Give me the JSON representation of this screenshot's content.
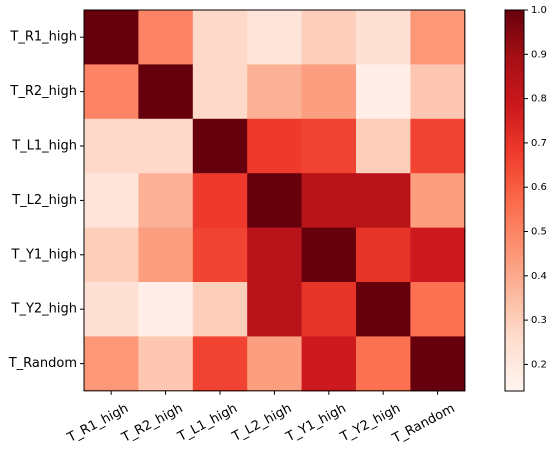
{
  "chart_data": {
    "type": "heatmap",
    "title": "",
    "xlabel": "",
    "ylabel": "",
    "row_labels": [
      "T_R1_high",
      "T_R2_high",
      "T_L1_high",
      "T_L2_high",
      "T_Y1_high",
      "T_Y2_high",
      "T_Random"
    ],
    "col_labels": [
      "T_R1_high",
      "T_R2_high",
      "T_L1_high",
      "T_L2_high",
      "T_Y1_high",
      "T_Y2_high",
      "T_Random"
    ],
    "values": [
      [
        1.0,
        0.5,
        0.27,
        0.22,
        0.3,
        0.24,
        0.45
      ],
      [
        0.5,
        1.0,
        0.27,
        0.38,
        0.43,
        0.17,
        0.32
      ],
      [
        0.27,
        0.27,
        1.0,
        0.68,
        0.66,
        0.3,
        0.66
      ],
      [
        0.22,
        0.38,
        0.68,
        1.0,
        0.84,
        0.84,
        0.43
      ],
      [
        0.3,
        0.43,
        0.66,
        0.84,
        1.0,
        0.7,
        0.78
      ],
      [
        0.24,
        0.17,
        0.3,
        0.84,
        0.7,
        1.0,
        0.55
      ],
      [
        0.45,
        0.32,
        0.66,
        0.43,
        0.78,
        0.55,
        1.0
      ]
    ],
    "colormap": "Reds",
    "colorbar": {
      "range": [
        0.14,
        1.0
      ],
      "ticks": [
        0.2,
        0.3,
        0.4,
        0.5,
        0.6,
        0.7,
        0.8,
        0.9,
        1.0
      ],
      "tick_labels": [
        "0.2",
        "0.3",
        "0.4",
        "0.5",
        "0.6",
        "0.7",
        "0.8",
        "0.9",
        "1.0"
      ]
    },
    "grid": false,
    "legend": "colorbar-right"
  }
}
